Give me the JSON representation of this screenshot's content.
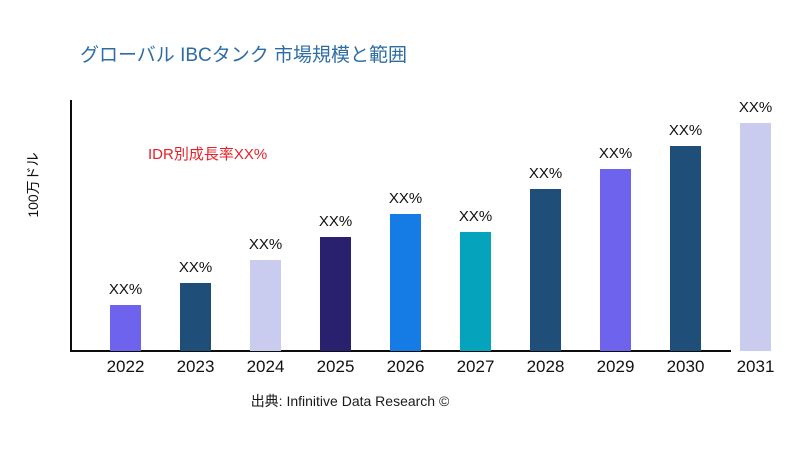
{
  "header": {
    "title": "グローバル IBCタンク 市場規模と範囲",
    "title_color": "#2e6da4"
  },
  "chart": {
    "y_axis_label": "100万ドル",
    "annotation": "IDR別成長率XX%",
    "annotation_color": "#e62129"
  },
  "footer": {
    "source": "出典: Infinitive Data Research ©"
  },
  "chart_data": {
    "type": "bar",
    "title": "グローバル IBCタンク 市場規模と範囲",
    "xlabel": "",
    "ylabel": "100万ドル",
    "categories": [
      "2022",
      "2023",
      "2024",
      "2025",
      "2026",
      "2027",
      "2028",
      "2029",
      "2030",
      "2031"
    ],
    "values": [
      20,
      30,
      40,
      50,
      60,
      52,
      71,
      80,
      90,
      100
    ],
    "values_note": "numeric values are masked in the source chart as XX%; values given are relative bar heights with 2031 = 100",
    "bar_labels": [
      "XX%",
      "XX%",
      "XX%",
      "XX%",
      "XX%",
      "XX%",
      "XX%",
      "XX%",
      "XX%",
      "XX%"
    ],
    "bar_colors": [
      "#6e63ec",
      "#1f4e79",
      "#c9ccef",
      "#29206e",
      "#147ce4",
      "#06a3bc",
      "#1f4e79",
      "#6e63ec",
      "#1f4e79",
      "#c9ccef"
    ],
    "annotation": "IDR別成長率XX%",
    "grid": false,
    "legend": false,
    "ylim": [
      0,
      110
    ]
  }
}
